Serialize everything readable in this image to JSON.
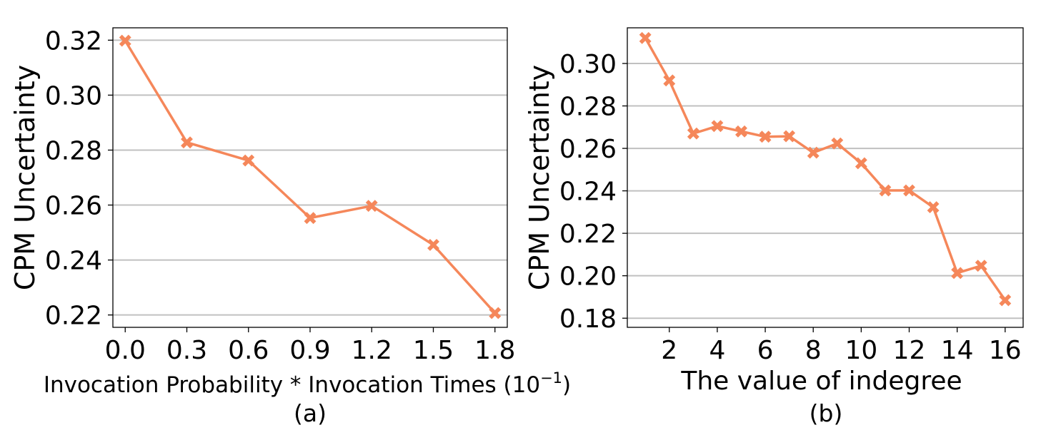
{
  "chart_data": [
    {
      "type": "line",
      "xlabel_main": "Invocation Probability * Invocation Times (10",
      "xlabel_sup": "−1",
      "xlabel_close": ")",
      "ylabel": "CPM Uncertainty",
      "caption": "(a)",
      "x": [
        0.0,
        0.3,
        0.6,
        0.9,
        1.2,
        1.5,
        1.8
      ],
      "xticks": [
        "0.0",
        "0.3",
        "0.6",
        "0.9",
        "1.2",
        "1.5",
        "1.8"
      ],
      "xlim": [
        -0.06,
        1.86
      ],
      "yticks": [
        0.22,
        0.24,
        0.26,
        0.28,
        0.3,
        0.32
      ],
      "ytick_labels": [
        "0.22",
        "0.24",
        "0.26",
        "0.28",
        "0.30",
        "0.32"
      ],
      "ylim": [
        0.2155,
        0.3245
      ],
      "grid": "horizontal",
      "color": "#f5875a",
      "series": [
        {
          "values": [
            0.3198,
            0.2828,
            0.2762,
            0.2553,
            0.2597,
            0.2455,
            0.2207
          ]
        }
      ]
    },
    {
      "type": "line",
      "xlabel": "The value of indegree",
      "ylabel": "CPM Uncertainty",
      "caption": "(b)",
      "x": [
        1,
        2,
        3,
        4,
        5,
        6,
        7,
        8,
        9,
        10,
        11,
        12,
        13,
        14,
        15,
        16
      ],
      "xticks": [
        "2",
        "4",
        "6",
        "8",
        "10",
        "12",
        "14",
        "16"
      ],
      "xtick_values": [
        2,
        4,
        6,
        8,
        10,
        12,
        14,
        16
      ],
      "xlim": [
        0.25,
        16.75
      ],
      "yticks": [
        0.18,
        0.2,
        0.22,
        0.24,
        0.26,
        0.28,
        0.3
      ],
      "ytick_labels": [
        "0.18",
        "0.20",
        "0.22",
        "0.24",
        "0.26",
        "0.28",
        "0.30"
      ],
      "ylim": [
        0.1757,
        0.3168
      ],
      "grid": "horizontal",
      "color": "#f5875a",
      "series": [
        {
          "values": [
            0.312,
            0.292,
            0.267,
            0.2705,
            0.268,
            0.2655,
            0.2657,
            0.258,
            0.2623,
            0.253,
            0.2402,
            0.2402,
            0.2323,
            0.2013,
            0.2047,
            0.1885
          ]
        }
      ]
    }
  ]
}
